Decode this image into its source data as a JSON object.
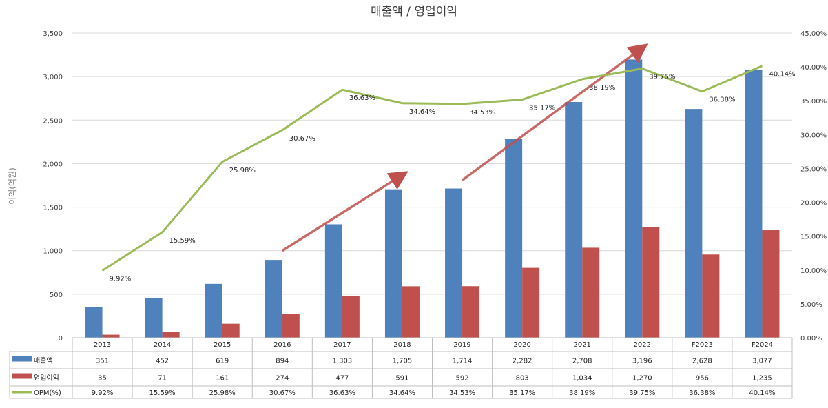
{
  "chart_data": {
    "type": "bar",
    "title": "매출액 / 영업이익",
    "ylabel": "이익(억원)",
    "ylim": [
      0,
      3500
    ],
    "y_ticks": [
      "0",
      "500",
      "1,000",
      "1,500",
      "2,000",
      "2,500",
      "3,000",
      "3,500"
    ],
    "y2lim": [
      0,
      45
    ],
    "y2_ticks": [
      "0.00%",
      "5.00%",
      "10.00%",
      "15.00%",
      "20.00%",
      "25.00%",
      "30.00%",
      "35.00%",
      "40.00%",
      "45.00%"
    ],
    "grid": true,
    "legend": "data-table",
    "categories": [
      "2013",
      "2014",
      "2015",
      "2016",
      "2017",
      "2018",
      "2019",
      "2020",
      "2021",
      "2022",
      "F2023",
      "F2024"
    ],
    "series": [
      {
        "name": "매출액",
        "kind": "bar",
        "axis": "left",
        "color": "#4f81bd",
        "values": [
          351,
          452,
          619,
          894,
          1303,
          1705,
          1714,
          2282,
          2708,
          3196,
          2628,
          3077
        ],
        "display": [
          "351",
          "452",
          "619",
          "894",
          "1,303",
          "1,705",
          "1,714",
          "2,282",
          "2,708",
          "3,196",
          "2,628",
          "3,077"
        ]
      },
      {
        "name": "영업이익",
        "kind": "bar",
        "axis": "left",
        "color": "#c0504d",
        "values": [
          35,
          71,
          161,
          274,
          477,
          591,
          592,
          803,
          1034,
          1270,
          956,
          1235
        ],
        "display": [
          "35",
          "71",
          "161",
          "274",
          "477",
          "591",
          "592",
          "803",
          "1,034",
          "1,270",
          "956",
          "1,235"
        ]
      },
      {
        "name": "OPM(%)",
        "kind": "line",
        "axis": "right",
        "color": "#9bbb59",
        "values": [
          9.92,
          15.59,
          25.98,
          30.67,
          36.63,
          34.64,
          34.53,
          35.17,
          38.19,
          39.75,
          36.38,
          40.14
        ],
        "display": [
          "9.92%",
          "15.59%",
          "25.98%",
          "30.67%",
          "36.63%",
          "34.64%",
          "34.53%",
          "35.17%",
          "38.19%",
          "39.75%",
          "36.38%",
          "40.14%"
        ]
      }
    ],
    "annotations": [
      {
        "kind": "trend-arrow",
        "color": "#c0504d",
        "from": {
          "category": "2016",
          "y": 1000
        },
        "to": {
          "category": "2018",
          "y": 1870
        }
      },
      {
        "kind": "trend-arrow",
        "color": "#c0504d",
        "from": {
          "category": "2019",
          "y": 1810
        },
        "to": {
          "category": "2022",
          "y": 3330
        }
      }
    ]
  }
}
